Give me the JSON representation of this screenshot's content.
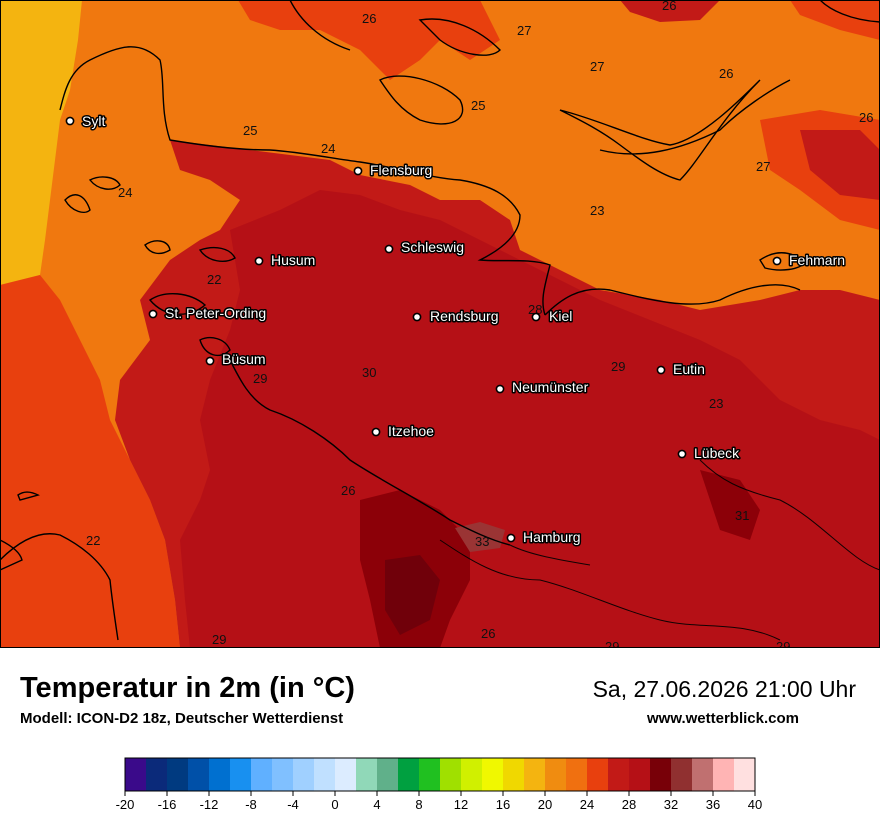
{
  "map": {
    "cities": [
      {
        "id": "sylt",
        "name": "Sylt"
      },
      {
        "id": "flensburg",
        "name": "Flensburg"
      },
      {
        "id": "schleswig",
        "name": "Schleswig"
      },
      {
        "id": "husum",
        "name": "Husum"
      },
      {
        "id": "fehmarn",
        "name": "Fehmarn"
      },
      {
        "id": "st-peter-ording",
        "name": "St. Peter-Ording"
      },
      {
        "id": "rendsburg",
        "name": "Rendsburg"
      },
      {
        "id": "kiel",
        "name": "Kiel"
      },
      {
        "id": "buesum",
        "name": "Büsum"
      },
      {
        "id": "eutin",
        "name": "Eutin"
      },
      {
        "id": "neumuenster",
        "name": "Neumünster"
      },
      {
        "id": "itzehoe",
        "name": "Itzehoe"
      },
      {
        "id": "luebeck",
        "name": "Lübeck"
      },
      {
        "id": "hamburg",
        "name": "Hamburg"
      }
    ],
    "isotherm_labels": [
      "26",
      "26",
      "27",
      "27",
      "26",
      "26",
      "25",
      "25",
      "24",
      "24",
      "27",
      "23",
      "22",
      "28",
      "29",
      "30",
      "29",
      "23",
      "26",
      "31",
      "33",
      "22",
      "29",
      "26",
      "29",
      "29"
    ],
    "colors": {
      "c22": "#e8400e",
      "c24": "#f0780f",
      "c20": "#f4b410",
      "c26": "#c21a17",
      "c28": "#b51016",
      "c30": "#8c0008",
      "c32": "#70000a",
      "c34": "#9a3434",
      "coast": "#000000"
    }
  },
  "header": {
    "title": "Temperatur in 2m (in °C)",
    "model": "Modell: ICON-D2 18z, Deutscher Wetterdienst",
    "datetime": "Sa, 27.06.2026 21:00 Uhr",
    "website": "www.wetterblick.com"
  },
  "legend": {
    "min": -20,
    "max": 40,
    "step": 2,
    "colors": [
      "#3a0a8a",
      "#0b2a7a",
      "#003a80",
      "#0050a8",
      "#0070d0",
      "#1890f0",
      "#60b0ff",
      "#80c0ff",
      "#a0d0ff",
      "#c0e0ff",
      "#dcecff",
      "#90d8b8",
      "#60b08a",
      "#00a040",
      "#20c020",
      "#a0e000",
      "#d0f000",
      "#f0f800",
      "#f0d800",
      "#f4b410",
      "#f08c10",
      "#f07010",
      "#e8400e",
      "#c21a17",
      "#b51016",
      "#780008",
      "#903030",
      "#c07070",
      "#ffb4b4",
      "#ffe0e0"
    ],
    "tick_labels": [
      "-20",
      "-16",
      "-12",
      "-8",
      "-4",
      "0",
      "4",
      "8",
      "12",
      "16",
      "20",
      "24",
      "28",
      "32",
      "36",
      "40"
    ]
  }
}
